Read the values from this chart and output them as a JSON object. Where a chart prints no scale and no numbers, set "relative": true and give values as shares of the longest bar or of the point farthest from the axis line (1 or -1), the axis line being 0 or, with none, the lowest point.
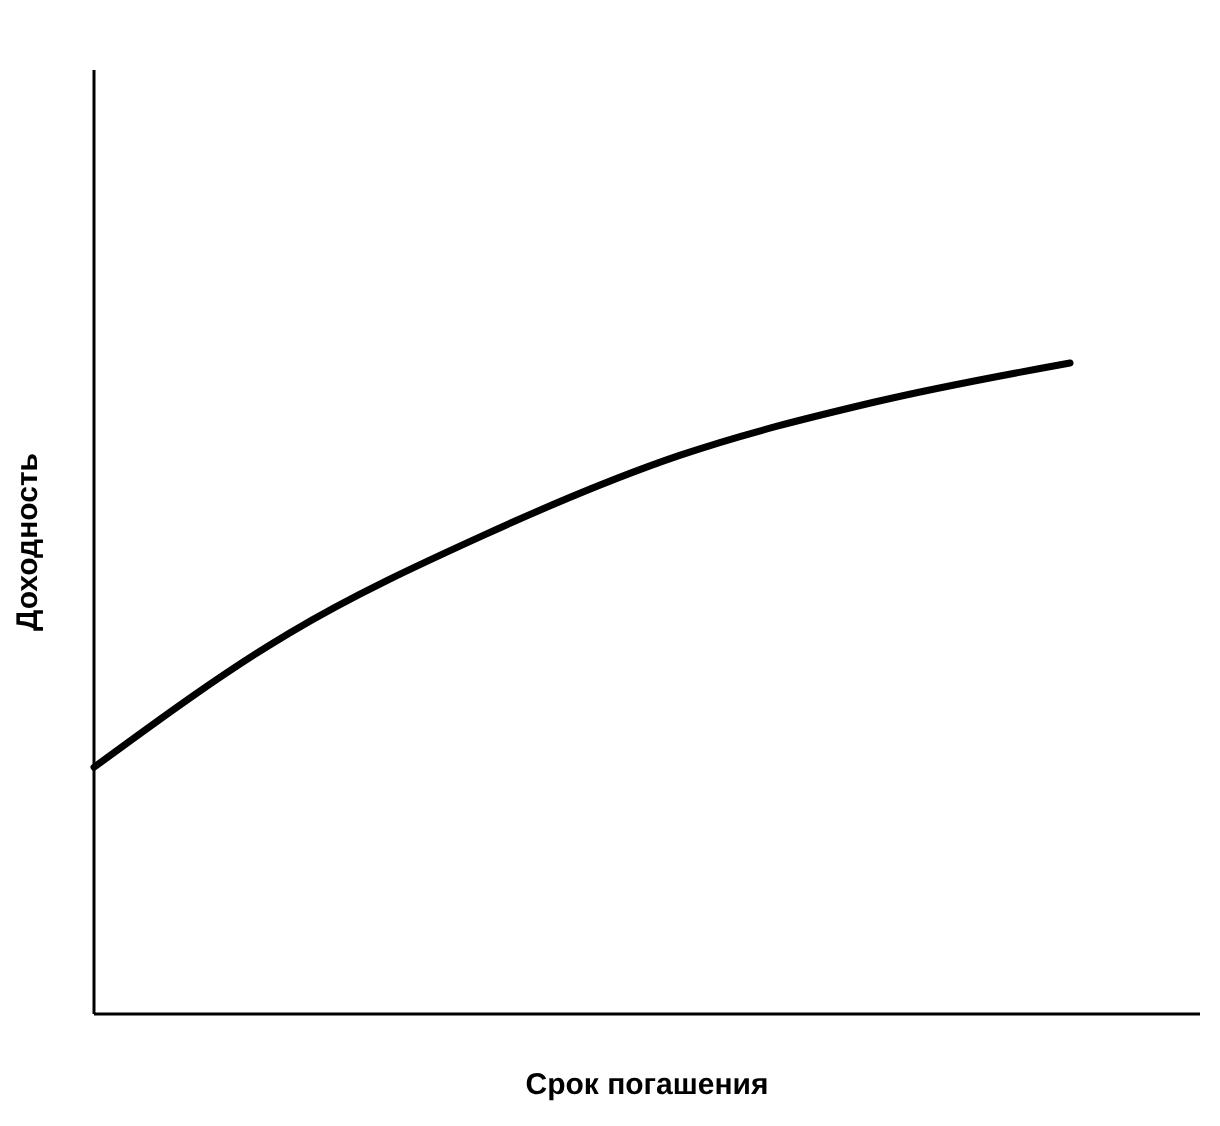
{
  "chart_data": {
    "type": "line",
    "relative": true,
    "xlabel": "Срок погашения",
    "ylabel": "Доходность",
    "categories": [
      null,
      null,
      null,
      null,
      null,
      null
    ],
    "series": [
      {
        "color": "#000000",
        "values": [
          0.379,
          0.585,
          0.736,
          0.858,
          0.94,
          1
        ]
      }
    ],
    "marker": "none",
    "line_style": "solid"
  }
}
